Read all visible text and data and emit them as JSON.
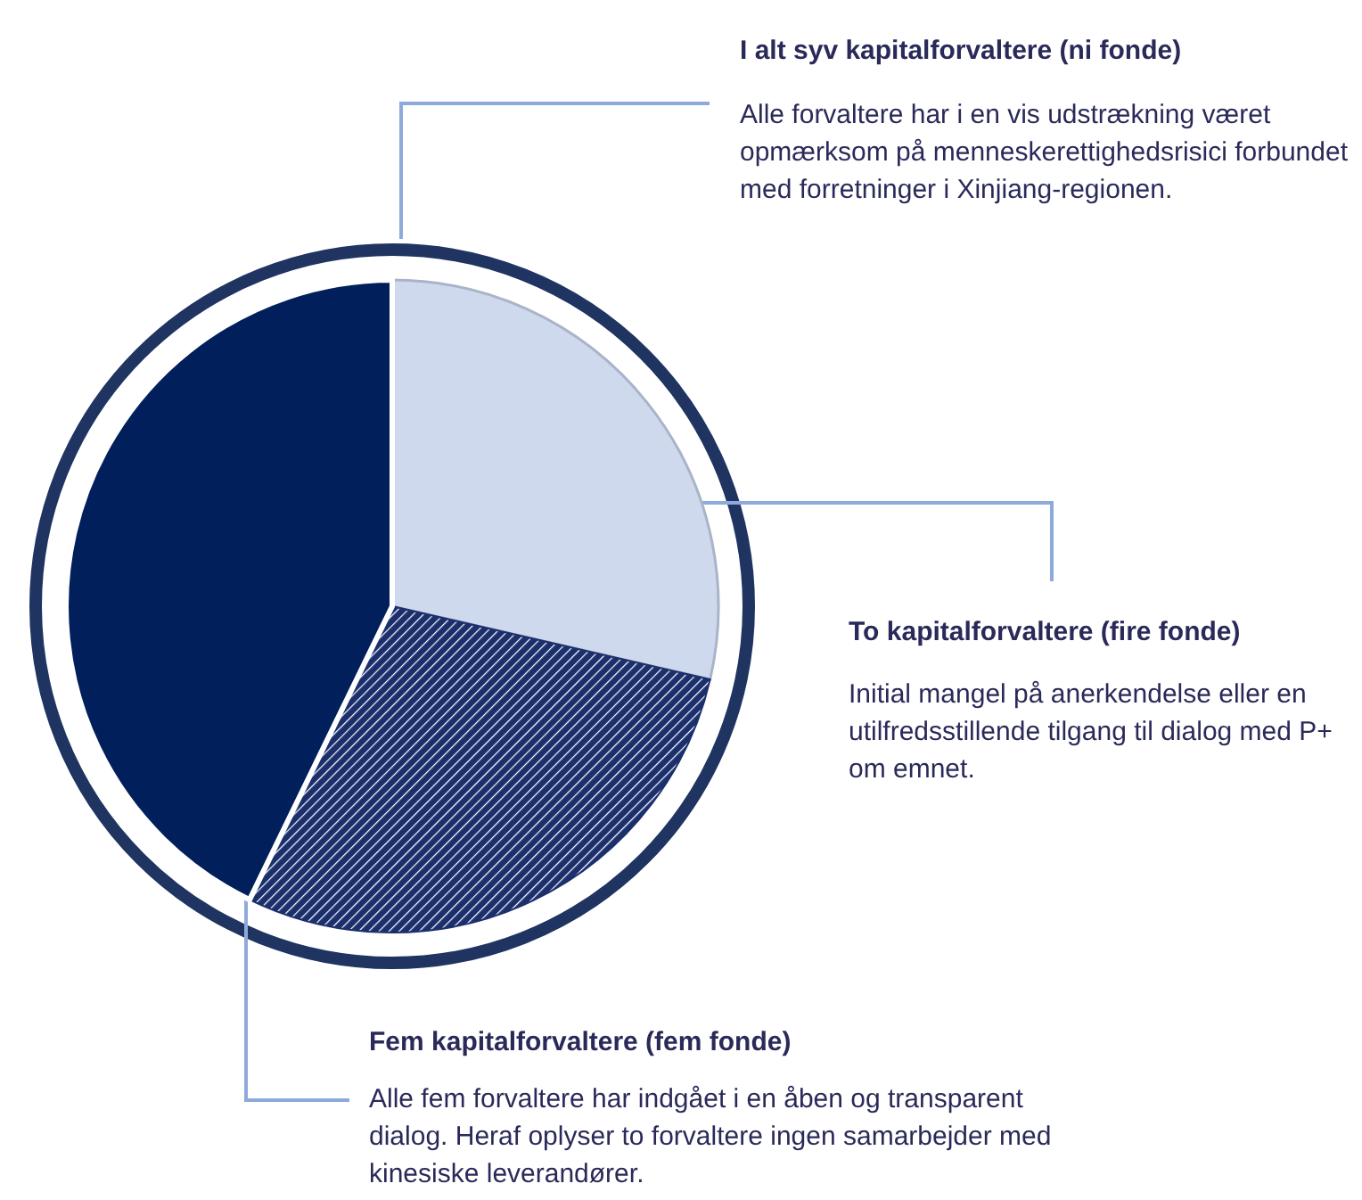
{
  "chart_data": {
    "type": "pie",
    "categories": [
      null,
      null,
      null
    ],
    "values": [
      28.6,
      28.6,
      42.8
    ],
    "colors": [
      "#cfd9ee",
      "#1b2f6c",
      "#001f5b"
    ],
    "annotations": [
      "I alt syv kapitalforvaltere (ni fonde)",
      "Alle forvaltere har i en vis udstrækning været opmærksom på menneskerettighedsrisici forbundet med forretninger i Xinjiang-regionen.",
      "To kapitalforvaltere (fire fonde)",
      "Initial mangel på anerkendelse eller en utilfredsstillende tilgang til dialog med P+ om emnet.",
      "Fem kapitalforvaltere (fem fonde)",
      "Alle fem forvaltere har indgået i en åben og transparent dialog. Heraf oplyser to forvaltere ingen samarbejder med kinesiske leverandører."
    ]
  }
}
